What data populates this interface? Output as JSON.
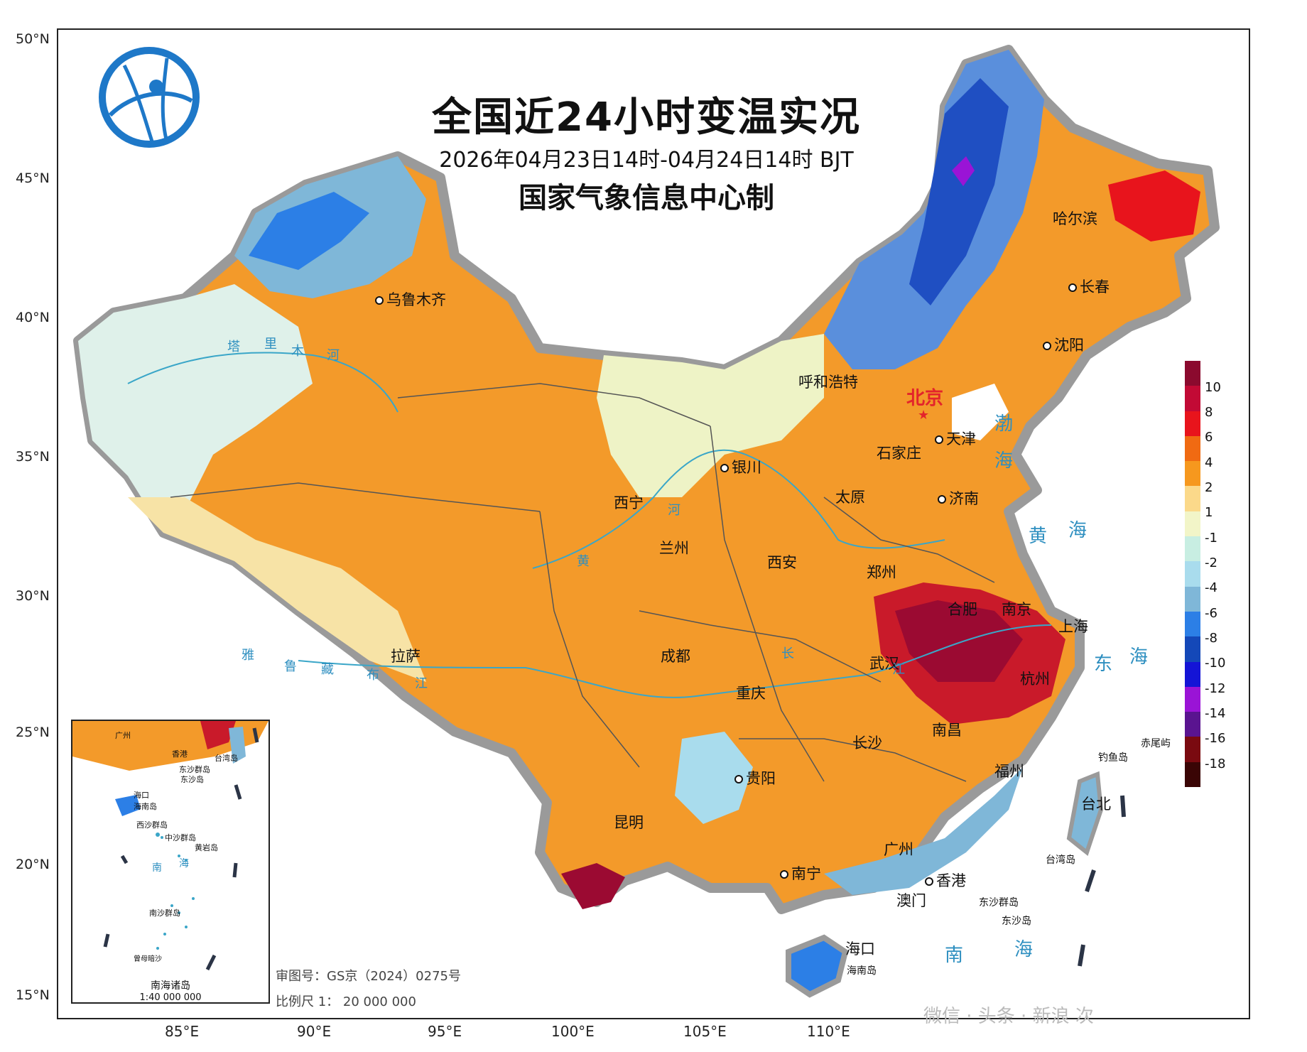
{
  "title": "全国近24小时变温实况",
  "time_range": "2026年04月23日14时-04月24日14时 BJT",
  "organization": "国家气象信息中心制",
  "lat_labels": [
    "50°N",
    "45°N",
    "40°N",
    "35°N",
    "30°N",
    "25°N",
    "20°N",
    "15°N"
  ],
  "lon_labels": [
    "85°E",
    "90°E",
    "95°E",
    "100°E",
    "105°E",
    "110°E"
  ],
  "capital": "北京",
  "cities": [
    "乌鲁木齐",
    "哈尔滨",
    "长春",
    "沈阳",
    "呼和浩特",
    "天津",
    "石家庄",
    "银川",
    "太原",
    "济南",
    "西宁",
    "兰州",
    "西安",
    "郑州",
    "合肥",
    "南京",
    "上海",
    "武汉",
    "杭州",
    "拉萨",
    "成都",
    "重庆",
    "南昌",
    "长沙",
    "福州",
    "贵阳",
    "昆明",
    "台北",
    "广州",
    "南宁",
    "香港",
    "澳门",
    "海口"
  ],
  "seas": [
    "渤",
    "海",
    "黄",
    "海",
    "东",
    "海",
    "南",
    "海"
  ],
  "rivers": [
    "塔",
    "里",
    "木",
    "河",
    "雅",
    "鲁",
    "藏",
    "布",
    "江",
    "黄",
    "河",
    "长",
    "江"
  ],
  "islands": [
    "钓鱼岛",
    "赤尾屿",
    "台湾岛",
    "东沙群岛",
    "东沙岛",
    "海南岛"
  ],
  "legend": {
    "ticks": [
      "10",
      "8",
      "6",
      "4",
      "2",
      "1",
      "-1",
      "-2",
      "-4",
      "-6",
      "-8",
      "-10",
      "-12",
      "-14",
      "-16",
      "-18"
    ],
    "colors": [
      "#8b0a2e",
      "#c20a35",
      "#e8141c",
      "#f06a12",
      "#f6981e",
      "#fbd98a",
      "#f2f5c8",
      "#c8eee2",
      "#a9dced",
      "#7fb7d8",
      "#2c7fe6",
      "#1448b8",
      "#1414d6",
      "#9a14d6",
      "#5a1490",
      "#7a0a10",
      "#3a0505"
    ]
  },
  "inset": {
    "title": "南海诸岛",
    "scale": "1:40 000 000",
    "labels": [
      "广州",
      "香港",
      "台湾岛",
      "东沙群岛",
      "东沙岛",
      "海口",
      "海南岛",
      "西沙群岛",
      "中沙群岛",
      "黄岩岛",
      "南",
      "海",
      "南沙群岛",
      "曾母暗沙"
    ]
  },
  "review_number": "审图号：GS京（2024）0275号",
  "scale": "比例尺 1： 20 000 000",
  "watermark": "微信 · 头条 · 新浪  次"
}
